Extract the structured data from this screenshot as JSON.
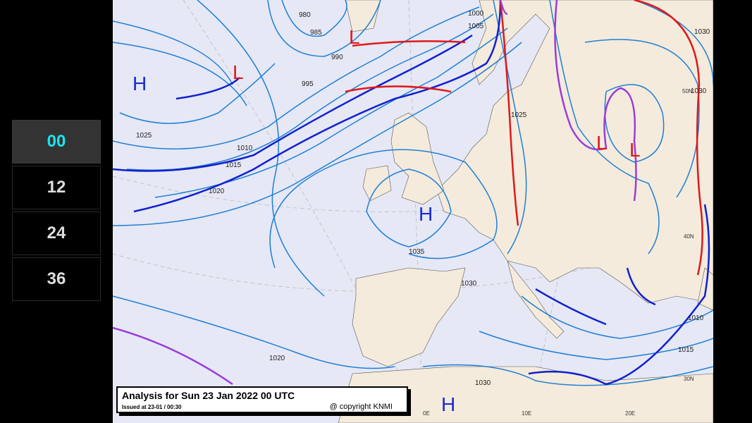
{
  "sidebar": {
    "steps": [
      {
        "label": "00",
        "active": true
      },
      {
        "label": "12",
        "active": false
      },
      {
        "label": "24",
        "active": false
      },
      {
        "label": "36",
        "active": false
      }
    ]
  },
  "map": {
    "caption": {
      "title": "Analysis for Sun 23 Jan 2022 00 UTC",
      "issued": "Issued at 23-01 / 00:30",
      "copyright": "@ copyright KNMI"
    },
    "pressure_labels": [
      "980",
      "985",
      "990",
      "995",
      "1000",
      "1005",
      "1010",
      "1015",
      "1020",
      "1025",
      "1025",
      "1030",
      "1035",
      "1030",
      "1030",
      "1020",
      "1010",
      "1015",
      "1030"
    ],
    "centers": [
      {
        "type": "H",
        "label": "H"
      },
      {
        "type": "L",
        "label": "L"
      },
      {
        "type": "L",
        "label": "L"
      },
      {
        "type": "H",
        "label": "H"
      },
      {
        "type": "L",
        "label": "L"
      },
      {
        "type": "L",
        "label": "L"
      },
      {
        "type": "H",
        "label": "H"
      }
    ],
    "grid_labels": [
      "40N",
      "30N",
      "0E",
      "10E",
      "20E",
      "50N"
    ],
    "colors": {
      "sea": "#e6e8f6",
      "land": "#f4ebdc",
      "isobar": "#1e7fd6",
      "cold_front": "#1020d0",
      "warm_front": "#e01818",
      "occlusion": "#9a3cd8",
      "high": "#1a2ad0",
      "low": "#e01818"
    }
  }
}
